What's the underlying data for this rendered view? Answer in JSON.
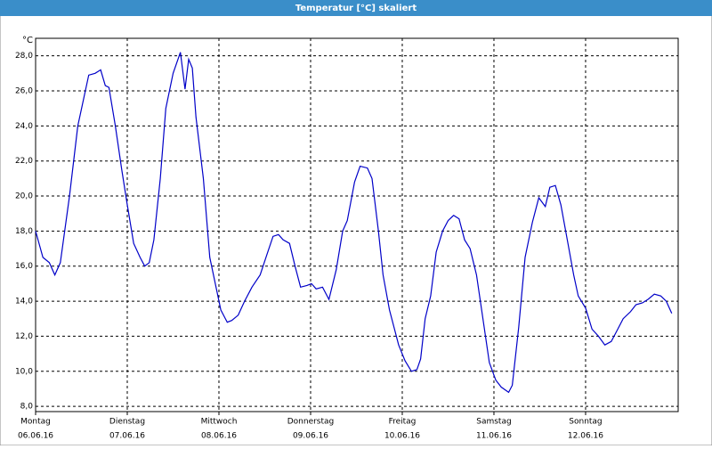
{
  "chart_data": {
    "type": "line",
    "title": "Temperatur [°C] skaliert",
    "y_unit": "°C",
    "color": "#0000c8",
    "grid": true,
    "x": [
      0,
      0.08,
      0.15,
      0.21,
      0.27,
      0.37,
      0.46,
      0.51,
      0.58,
      0.65,
      0.71,
      0.76,
      0.8,
      0.87,
      0.94,
      1.0,
      1.07,
      1.14,
      1.19,
      1.24,
      1.29,
      1.36,
      1.42,
      1.5,
      1.58,
      1.63,
      1.67,
      1.71,
      1.75,
      1.83,
      1.9,
      1.96,
      2.02,
      2.09,
      2.14,
      2.21,
      2.28,
      2.36,
      2.45,
      2.52,
      2.59,
      2.65,
      2.7,
      2.77,
      2.83,
      2.89,
      2.96,
      3.01,
      3.06,
      3.13,
      3.2,
      3.28,
      3.35,
      3.4,
      3.48,
      3.54,
      3.62,
      3.67,
      3.74,
      3.79,
      3.86,
      3.96,
      4.03,
      4.1,
      4.16,
      4.2,
      4.25,
      4.31,
      4.37,
      4.44,
      4.5,
      4.56,
      4.62,
      4.68,
      4.74,
      4.81,
      4.88,
      4.95,
      5.02,
      5.08,
      5.16,
      5.2,
      5.27,
      5.34,
      5.42,
      5.49,
      5.56,
      5.61,
      5.67,
      5.73,
      5.8,
      5.87,
      5.92,
      6.0,
      6.07,
      6.14,
      6.21,
      6.28,
      6.33,
      6.41,
      6.49,
      6.55,
      6.62,
      6.68,
      6.75,
      6.82,
      6.88,
      6.94
    ],
    "values": [
      18.0,
      16.5,
      16.2,
      15.5,
      16.2,
      20,
      24,
      25.2,
      26.9,
      27.0,
      27.2,
      26.3,
      26.2,
      24,
      21.5,
      19.5,
      17.3,
      16.5,
      16.0,
      16.2,
      17.5,
      21,
      25,
      27,
      28.2,
      26.1,
      27.8,
      27.3,
      24.5,
      21,
      16.5,
      15,
      13.5,
      12.8,
      12.9,
      13.2,
      14,
      14.8,
      15.5,
      16.6,
      17.7,
      17.8,
      17.5,
      17.3,
      16,
      14.8,
      14.9,
      15.0,
      14.7,
      14.8,
      14.1,
      15.8,
      18,
      18.6,
      20.8,
      21.7,
      21.6,
      21,
      18,
      15.5,
      13.5,
      11.5,
      10.6,
      10.0,
      10.1,
      10.7,
      13,
      14.3,
      16.8,
      18,
      18.6,
      18.9,
      18.7,
      17.5,
      17,
      15.5,
      13,
      10.5,
      9.5,
      9.1,
      8.8,
      9.2,
      12.5,
      16.5,
      18.5,
      19.9,
      19.4,
      20.5,
      20.6,
      19.5,
      17.5,
      15.5,
      14.3,
      13.6,
      12.4,
      12,
      11.5,
      11.7,
      12.2,
      13,
      13.4,
      13.8,
      13.9,
      14.1,
      14.4,
      14.3,
      14.0,
      13.3
    ],
    "xlim": [
      0,
      7.01
    ],
    "xticks": [
      {
        "value": 0,
        "label": "Montag"
      },
      {
        "value": 1,
        "label": "Dienstag"
      },
      {
        "value": 2,
        "label": "Mittwoch"
      },
      {
        "value": 3,
        "label": "Donnerstag"
      },
      {
        "value": 4,
        "label": "Freitag"
      },
      {
        "value": 5,
        "label": "Samstag"
      },
      {
        "value": 6,
        "label": "Sonntag"
      }
    ],
    "xtick_dates": [
      "06.06.16",
      "07.06.16",
      "08.06.16",
      "09.06.16",
      "10.06.16",
      "11.06.16",
      "12.06.16"
    ],
    "ylim": [
      7.7,
      29.0
    ],
    "yticks": [
      {
        "value": 8,
        "label": "8,0"
      },
      {
        "value": 10,
        "label": "10,0"
      },
      {
        "value": 12,
        "label": "12,0"
      },
      {
        "value": 14,
        "label": "14,0"
      },
      {
        "value": 16,
        "label": "16,0"
      },
      {
        "value": 18,
        "label": "18,0"
      },
      {
        "value": 20,
        "label": "20,0"
      },
      {
        "value": 22,
        "label": "22,0"
      },
      {
        "value": 24,
        "label": "24,0"
      },
      {
        "value": 26,
        "label": "26,0"
      },
      {
        "value": 28,
        "label": "28,0"
      }
    ]
  }
}
